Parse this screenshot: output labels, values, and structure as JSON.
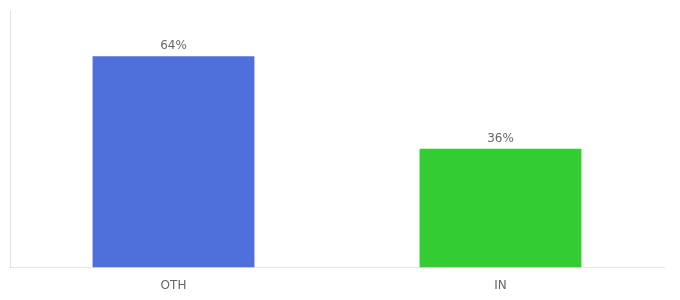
{
  "chart_data": {
    "type": "bar",
    "categories": [
      "OTH",
      "IN"
    ],
    "values": [
      64,
      36
    ],
    "value_labels": [
      "64%",
      "36%"
    ],
    "colors": [
      "#4f6fdb",
      "#33cc33"
    ],
    "ylim": [
      0,
      78
    ],
    "data_labels": true,
    "tick_labels": "x",
    "grid": false
  }
}
